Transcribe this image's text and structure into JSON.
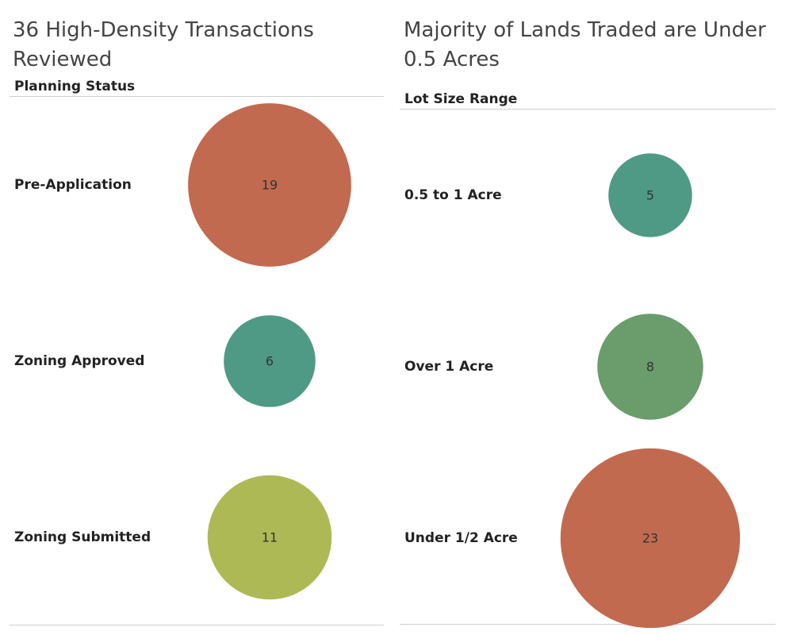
{
  "chart_data": [
    {
      "type": "bubble",
      "title": "36 High-Density Transactions Reviewed",
      "row_header": "Planning Status",
      "categories": [
        "Pre-Application",
        "Zoning Approved",
        "Zoning Submitted"
      ],
      "values": [
        19,
        6,
        11
      ],
      "colors": [
        "#c26a4f",
        "#4f9a85",
        "#adb954"
      ]
    },
    {
      "type": "bubble",
      "title": "Majority of Lands Traded are Under 0.5 Acres",
      "row_header": "Lot Size Range",
      "categories": [
        "0.5 to 1 Acre",
        "Over 1 Acre",
        "Under 1/2 Acre"
      ],
      "values": [
        5,
        8,
        23
      ],
      "colors": [
        "#4f9a85",
        "#6b9c6b",
        "#c26a4f"
      ]
    }
  ]
}
